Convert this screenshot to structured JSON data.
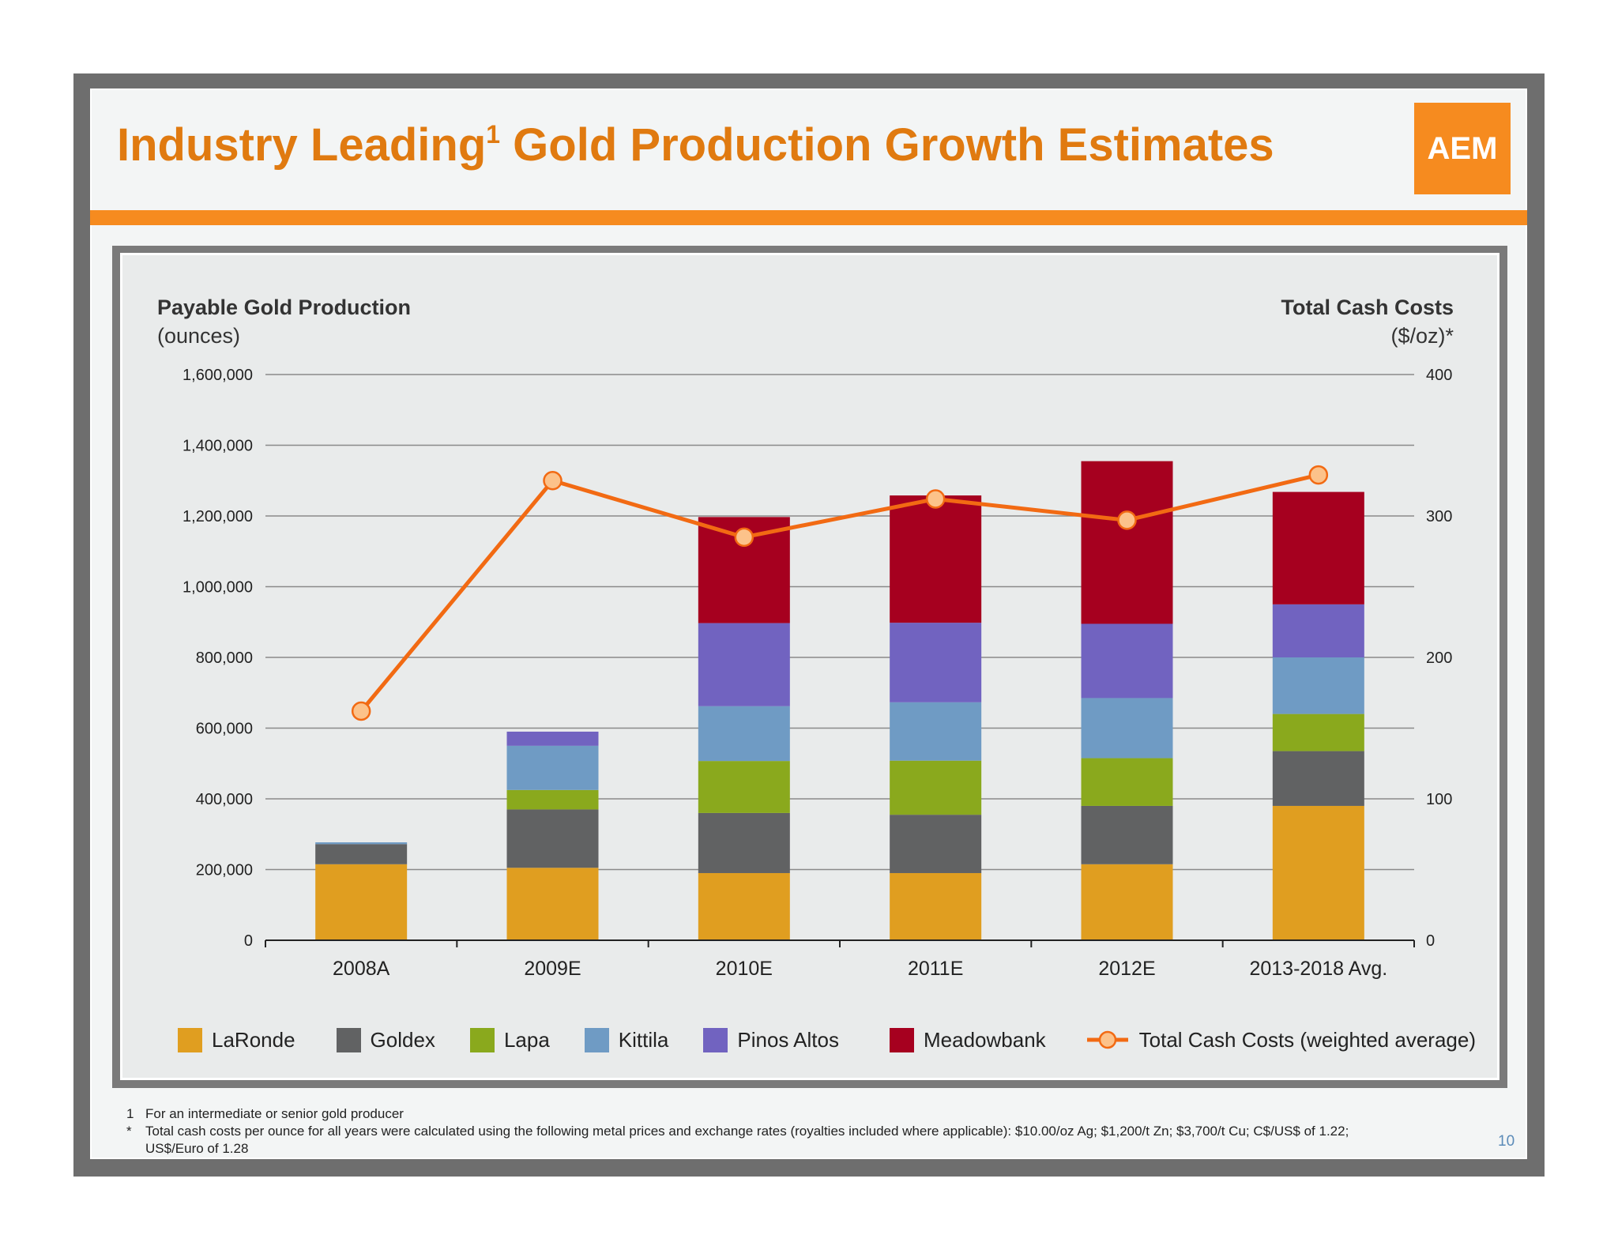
{
  "slide": {
    "title_main": "Industry Leading",
    "title_sup": "1",
    "title_rest": " Gold Production Growth Estimates",
    "logo_text": "AEM",
    "page_number": "10"
  },
  "axes": {
    "left_title": "Payable Gold Production",
    "left_unit": "(ounces)",
    "right_title": "Total Cash Costs",
    "right_unit": "($/oz)*"
  },
  "footnotes": [
    {
      "mark": "1",
      "text": "For an intermediate or senior gold producer"
    },
    {
      "mark": "*",
      "text": "Total cash costs per ounce for all years were calculated using the following metal prices and exchange rates (royalties included where applicable): $10.00/oz Ag; $1,200/t Zn; $3,700/t Cu; C$/US$ of 1.22;"
    },
    {
      "mark": "",
      "text": "US$/Euro of 1.28"
    }
  ],
  "colors": {
    "LaRonde": "#e09e20",
    "Goldex": "#616263",
    "Lapa": "#8aa91d",
    "Kittila": "#6f9bc4",
    "Pinos Altos": "#7163c0",
    "Meadowbank": "#a6001f",
    "line": "#f26a13",
    "marker_fill": "#fcc28a"
  },
  "chart_data": {
    "type": "bar",
    "stacked": true,
    "categories": [
      "2008A",
      "2009E",
      "2010E",
      "2011E",
      "2012E",
      "2013-2018 Avg."
    ],
    "series": [
      {
        "name": "LaRonde",
        "values": [
          215000,
          205000,
          190000,
          190000,
          215000,
          380000
        ]
      },
      {
        "name": "Goldex",
        "values": [
          57000,
          165000,
          170000,
          165000,
          165000,
          155000
        ]
      },
      {
        "name": "Lapa",
        "values": [
          0,
          55000,
          147000,
          153000,
          135000,
          105000
        ]
      },
      {
        "name": "Kittila",
        "values": [
          5000,
          125000,
          155000,
          165000,
          170000,
          160000
        ]
      },
      {
        "name": "Pinos Altos",
        "values": [
          0,
          40000,
          235000,
          225000,
          210000,
          150000
        ]
      },
      {
        "name": "Meadowbank",
        "values": [
          0,
          0,
          300000,
          360000,
          460000,
          318000
        ]
      }
    ],
    "line_series": {
      "name": "Total Cash Costs (weighted average)",
      "axis": "right",
      "values": [
        162,
        325,
        285,
        312,
        297,
        329
      ]
    },
    "left_axis": {
      "min": 0,
      "max": 1600000,
      "ticks": [
        "0",
        "200,000",
        "400,000",
        "600,000",
        "800,000",
        "1,000,000",
        "1,200,000",
        "1,400,000",
        "1,600,000"
      ]
    },
    "right_axis": {
      "min": 0,
      "max": 400,
      "ticks": [
        "0",
        "100",
        "200",
        "300",
        "400"
      ]
    },
    "legend": [
      "LaRonde",
      "Goldex",
      "Lapa",
      "Kittila",
      "Pinos Altos",
      "Meadowbank",
      "Total Cash Costs (weighted average)"
    ]
  }
}
